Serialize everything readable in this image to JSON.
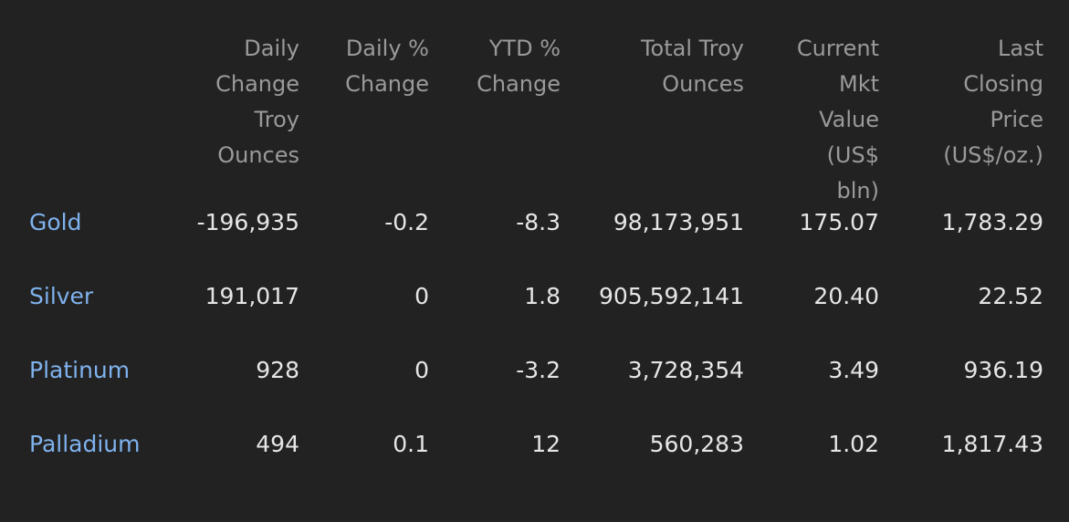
{
  "table": {
    "headers": [
      "",
      "Daily Change Troy Ounces",
      "Daily % Change",
      "YTD % Change",
      "Total Troy Ounces",
      "Current Mkt Value (US$ bln)",
      "Last Closing Price (US$/oz.)"
    ],
    "rows": [
      {
        "metal": "Gold",
        "daily_change_oz": "-196,935",
        "daily_pct": "-0.2",
        "ytd_pct": "-8.3",
        "total_oz": "98,173,951",
        "mkt_value": "175.07",
        "last_price": "1,783.29"
      },
      {
        "metal": "Silver",
        "daily_change_oz": "191,017",
        "daily_pct": "0",
        "ytd_pct": "1.8",
        "total_oz": "905,592,141",
        "mkt_value": "20.40",
        "last_price": "22.52"
      },
      {
        "metal": "Platinum",
        "daily_change_oz": "928",
        "daily_pct": "0",
        "ytd_pct": "-3.2",
        "total_oz": "3,728,354",
        "mkt_value": "3.49",
        "last_price": "936.19"
      },
      {
        "metal": "Palladium",
        "daily_change_oz": "494",
        "daily_pct": "0.1",
        "ytd_pct": "12",
        "total_oz": "560,283",
        "mkt_value": "1.02",
        "last_price": "1,817.43"
      }
    ]
  },
  "colors": {
    "background": "#222222",
    "header_text": "#9a9a9a",
    "cell_text": "#e6e6e6",
    "metal_link": "#7fb2ee"
  }
}
